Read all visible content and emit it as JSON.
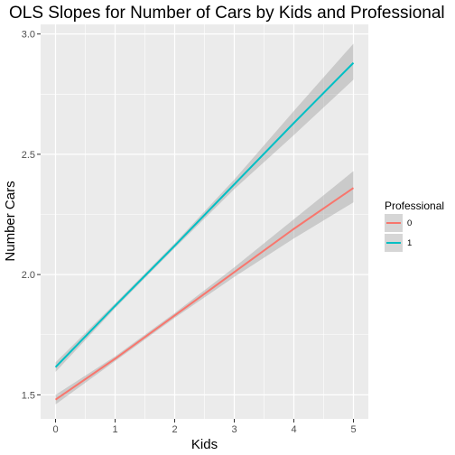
{
  "chart_data": {
    "type": "line",
    "title": "OLS Slopes for Number of Cars by Kids and Professional",
    "xlabel": "Kids",
    "ylabel": "Number Cars",
    "xlim": [
      -0.25,
      5.25
    ],
    "ylim": [
      1.4,
      3.04
    ],
    "x_ticks": [
      0,
      1,
      2,
      3,
      4,
      5
    ],
    "y_ticks": [
      1.5,
      2.0,
      2.5,
      3.0
    ],
    "x_tick_labels": [
      "0",
      "1",
      "2",
      "3",
      "4",
      "5"
    ],
    "y_tick_labels": [
      "1.5",
      "2.0",
      "2.5",
      "3.0"
    ],
    "grid": true,
    "legend": {
      "title": "Professional",
      "position": "right"
    },
    "series": [
      {
        "name": "0",
        "color": "#F8766D",
        "x": [
          0,
          1,
          2,
          3,
          4,
          5
        ],
        "y": [
          1.48,
          1.65,
          1.83,
          2.01,
          2.19,
          2.36
        ],
        "lower": [
          1.46,
          1.64,
          1.82,
          1.99,
          2.15,
          2.3
        ],
        "upper": [
          1.5,
          1.66,
          1.84,
          2.03,
          2.23,
          2.43
        ]
      },
      {
        "name": "1",
        "color": "#00BFC4",
        "x": [
          0,
          1,
          2,
          3,
          4,
          5
        ],
        "y": [
          1.615,
          1.87,
          2.12,
          2.375,
          2.63,
          2.88
        ],
        "lower": [
          1.595,
          1.86,
          2.11,
          2.355,
          2.58,
          2.81
        ],
        "upper": [
          1.635,
          1.88,
          2.13,
          2.395,
          2.68,
          2.96
        ]
      }
    ]
  }
}
